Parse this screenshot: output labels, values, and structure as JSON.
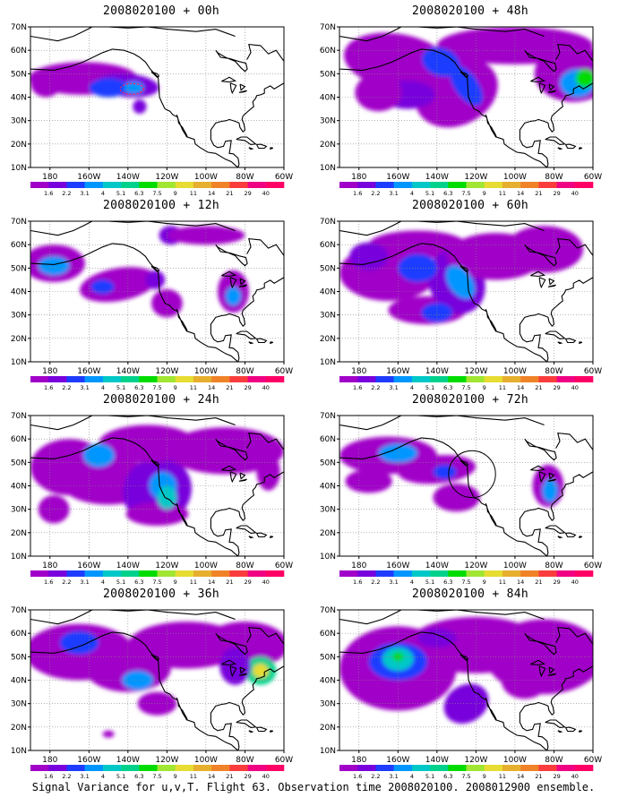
{
  "panels": [
    {
      "title": "2008020100 + 00h",
      "lead": "00h"
    },
    {
      "title": "2008020100 + 48h",
      "lead": "48h"
    },
    {
      "title": "2008020100 + 12h",
      "lead": "12h"
    },
    {
      "title": "2008020100 + 60h",
      "lead": "60h"
    },
    {
      "title": "2008020100 + 24h",
      "lead": "24h"
    },
    {
      "title": "2008020100 + 72h",
      "lead": "72h"
    },
    {
      "title": "2008020100 + 36h",
      "lead": "36h"
    },
    {
      "title": "2008020100 + 84h",
      "lead": "84h"
    }
  ],
  "map": {
    "lon_ticks": [
      "180",
      "160W",
      "140W",
      "120W",
      "100W",
      "80W",
      "60W"
    ],
    "lat_ticks": [
      "70N",
      "60N",
      "50N",
      "40N",
      "30N",
      "20N",
      "10N"
    ],
    "lon_range": [
      -190,
      -60
    ],
    "lat_range": [
      10,
      70
    ]
  },
  "colorbar": {
    "labels": [
      "1.6",
      "2.2",
      "3.1",
      "4",
      "5.1",
      "6.3",
      "7.5",
      "9",
      "11",
      "14",
      "21",
      "29",
      "40"
    ],
    "colors": [
      "#a000c8",
      "#7800dc",
      "#1e3cff",
      "#0096ff",
      "#00c8c8",
      "#00d28c",
      "#00dc00",
      "#a0e632",
      "#e6dc32",
      "#e6af2d",
      "#f08228",
      "#fa3c3c",
      "#f00082",
      "#ff0066"
    ]
  },
  "footer": "Signal Variance for u,v,T. Flight 63. Observation time 2008020100. 2008012900 ensemble."
}
